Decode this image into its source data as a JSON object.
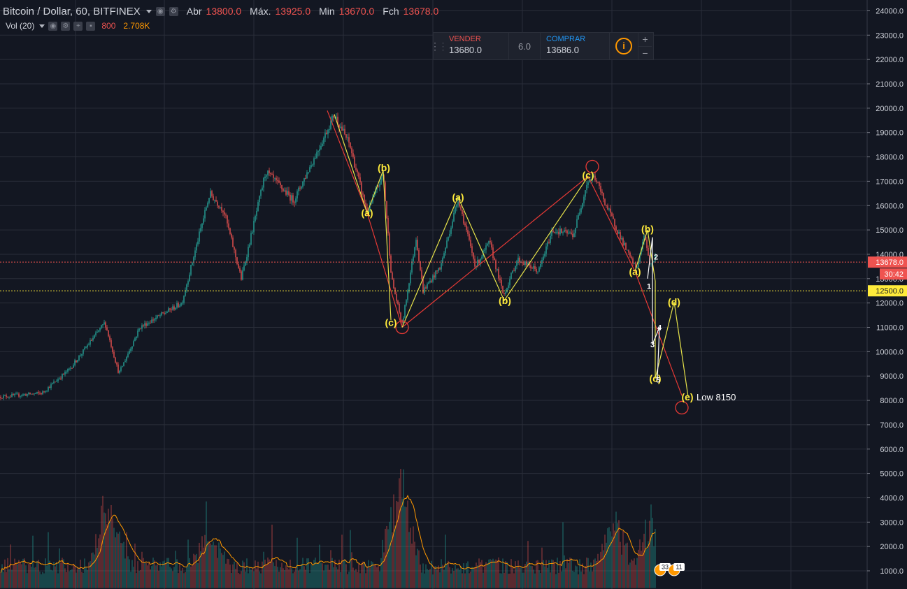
{
  "header": {
    "symbol": "Bitcoin / Dollar, 60, BITFINEX",
    "open_label": "Abr",
    "open": "13800.0",
    "high_label": "Máx.",
    "high": "13925.0",
    "low_label": "Min",
    "low": "13670.0",
    "close_label": "Fch",
    "close": "13678.0"
  },
  "volume_indicator": {
    "label": "Vol (20)",
    "value1": "800",
    "value2": "2.708K"
  },
  "trade_panel": {
    "sell_label": "VENDER",
    "sell_price": "13680.0",
    "quantity": "6.0",
    "buy_label": "COMPRAR",
    "buy_price": "13686.0",
    "info_symbol": "i",
    "plus": "+",
    "minus": "−"
  },
  "price_axis": {
    "ticks": [
      "24000.0",
      "23000.0",
      "22000.0",
      "21000.0",
      "20000.0",
      "19000.0",
      "18000.0",
      "17000.0",
      "16000.0",
      "15000.0",
      "14000.0",
      "13000.0",
      "12000.0",
      "11000.0",
      "10000.0",
      "9000.0",
      "8000.0",
      "7000.0",
      "6000.0",
      "5000.0",
      "4000.0",
      "3000.0",
      "2000.0",
      "1000.0"
    ],
    "current_price": "13678.0",
    "countdown": "30:42",
    "hline_price": "12500.0"
  },
  "annotations": {
    "low_note": "Low 8150",
    "event_badges": [
      "33",
      "11"
    ]
  },
  "colors": {
    "background": "#131722",
    "grid": "#2a2e39",
    "up": "#26a69a",
    "down": "#ef5350",
    "wave_yellow": "#e7e34a",
    "wave_red": "#e53935",
    "label_yellow": "#ffeb3b",
    "current_price_line": "#ef5350",
    "hline": "#ffeb3b",
    "vol_ma": "#ff9800"
  },
  "chart_data": {
    "type": "candlestick",
    "title": "Bitcoin / Dollar, 60, BITFINEX",
    "ylim": [
      500,
      24300
    ],
    "price_path": [
      [
        0,
        8150
      ],
      [
        60,
        8300
      ],
      [
        100,
        9300
      ],
      [
        150,
        11200
      ],
      [
        170,
        9100
      ],
      [
        200,
        11000
      ],
      [
        260,
        12000
      ],
      [
        300,
        16500
      ],
      [
        320,
        15800
      ],
      [
        345,
        13000
      ],
      [
        380,
        17400
      ],
      [
        420,
        16200
      ],
      [
        460,
        18600
      ],
      [
        478,
        19750
      ],
      [
        500,
        18500
      ],
      [
        525,
        15700
      ],
      [
        548,
        17300
      ],
      [
        560,
        13000
      ],
      [
        575,
        11100
      ],
      [
        595,
        14700
      ],
      [
        605,
        12500
      ],
      [
        630,
        13500
      ],
      [
        655,
        16300
      ],
      [
        680,
        13500
      ],
      [
        700,
        14500
      ],
      [
        720,
        12300
      ],
      [
        740,
        13800
      ],
      [
        770,
        13300
      ],
      [
        790,
        15000
      ],
      [
        820,
        14800
      ],
      [
        840,
        17000
      ],
      [
        850,
        17200
      ],
      [
        870,
        15800
      ],
      [
        900,
        13900
      ],
      [
        910,
        13400
      ],
      [
        922,
        14800
      ],
      [
        930,
        13500
      ],
      [
        937,
        13900
      ]
    ],
    "volume_spikes": [
      [
        155,
        4600
      ],
      [
        300,
        2700
      ],
      [
        572,
        6000
      ],
      [
        880,
        3300
      ],
      [
        930,
        3200
      ]
    ],
    "wave_labels": [
      {
        "text": "(a)",
        "x": 525,
        "price": 15700
      },
      {
        "text": "(b)",
        "x": 549,
        "price": 17550
      },
      {
        "text": "(c)",
        "x": 559,
        "price": 11200
      },
      {
        "text": "(a)",
        "x": 655,
        "price": 16350
      },
      {
        "text": "(b)",
        "x": 722,
        "price": 12100
      },
      {
        "text": "(c)",
        "x": 841,
        "price": 17250
      },
      {
        "text": "(b)",
        "x": 926,
        "price": 15050
      },
      {
        "text": "(a)",
        "x": 908,
        "price": 13300
      },
      {
        "text": "(d)",
        "x": 964,
        "price": 12050
      },
      {
        "text": "(c)",
        "x": 937,
        "price": 8900
      },
      {
        "text": "(e)",
        "x": 983,
        "price": 8150
      },
      {
        "text": "1",
        "x": 928,
        "price": 12700
      },
      {
        "text": "2",
        "x": 938,
        "price": 13900
      },
      {
        "text": "3",
        "x": 933,
        "price": 10300
      },
      {
        "text": "4",
        "x": 943,
        "price": 11000
      },
      {
        "text": "5",
        "x": 941,
        "price": 8850
      }
    ],
    "yellow_waves": [
      [
        [
          478,
          19750
        ],
        [
          525,
          15700
        ],
        [
          548,
          17450
        ],
        [
          559,
          11300
        ]
      ],
      [
        [
          575,
          11000
        ],
        [
          655,
          16350
        ],
        [
          721,
          12100
        ],
        [
          841,
          17200
        ]
      ],
      [
        [
          908,
          13300
        ],
        [
          926,
          15000
        ],
        [
          937,
          12900
        ],
        [
          937,
          8900
        ],
        [
          964,
          12050
        ],
        [
          984,
          8150
        ]
      ]
    ],
    "red_waves": [
      [
        [
          468,
          19900
        ],
        [
          525,
          15700
        ],
        [
          575,
          11000
        ]
      ],
      [
        [
          575,
          11000
        ],
        [
          841,
          17200
        ]
      ],
      [
        [
          841,
          17200
        ],
        [
          908,
          13300
        ],
        [
          937,
          11100
        ],
        [
          975,
          8200
        ]
      ]
    ],
    "white_waves": [
      [
        [
          926,
          13000
        ],
        [
          933,
          14700
        ],
        [
          933,
          10300
        ],
        [
          943,
          11000
        ],
        [
          940,
          8850
        ]
      ]
    ]
  }
}
